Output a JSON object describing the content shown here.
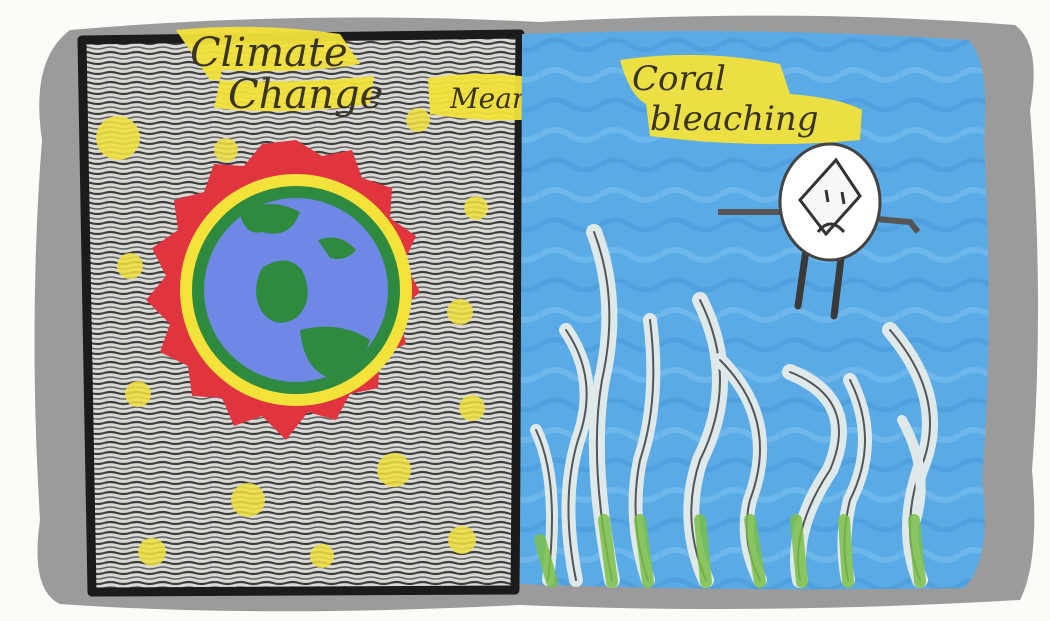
{
  "panels": {
    "left": {
      "title_line1": "Climate",
      "title_line2": "Change"
    },
    "connector": {
      "text": "Means"
    },
    "right": {
      "title_line1": "Coral",
      "title_line2": "bleaching"
    }
  },
  "colors": {
    "frame": "#9a9a9a",
    "space": "#5a5a5a",
    "ocean": "#58a9e6",
    "highlight": "#f3e23a",
    "sun_ring": "#e0343f",
    "earth_water": "#6f88e6",
    "earth_land": "#2e8a3e",
    "seaweed": "#dfe9ea",
    "seaweed_base": "#7ac04a"
  },
  "icons": [
    "star-icon",
    "earth-icon",
    "sad-coral-character-icon",
    "seaweed-icon"
  ]
}
